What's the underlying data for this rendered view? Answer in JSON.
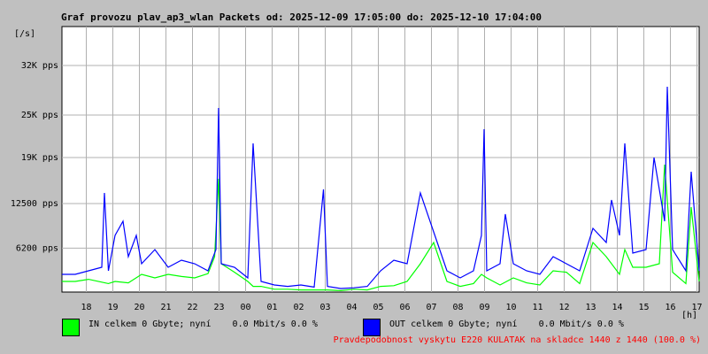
{
  "chart_data": {
    "type": "line",
    "title": "Graf provozu plav_ap3_wlan Packets od: 2025-12-09 17:05:00 do: 2025-12-10 17:04:00",
    "ylabel": "[/s]",
    "xlabel": "[h]",
    "ylim": [
      0,
      37500
    ],
    "yticks": [
      {
        "value": 6200,
        "label": "6200 pps"
      },
      {
        "value": 12500,
        "label": "12500 pps"
      },
      {
        "value": 19000,
        "label": "19K pps"
      },
      {
        "value": 25000,
        "label": "25K pps"
      },
      {
        "value": 32000,
        "label": "32K pps"
      }
    ],
    "xlim": [
      0,
      24
    ],
    "xticks": [
      {
        "value": 0.917,
        "label": "18"
      },
      {
        "value": 1.917,
        "label": "19"
      },
      {
        "value": 2.917,
        "label": "20"
      },
      {
        "value": 3.917,
        "label": "21"
      },
      {
        "value": 4.917,
        "label": "22"
      },
      {
        "value": 5.917,
        "label": "23"
      },
      {
        "value": 6.917,
        "label": "00"
      },
      {
        "value": 7.917,
        "label": "01"
      },
      {
        "value": 8.917,
        "label": "02"
      },
      {
        "value": 9.917,
        "label": "03"
      },
      {
        "value": 10.917,
        "label": "04"
      },
      {
        "value": 11.917,
        "label": "05"
      },
      {
        "value": 12.917,
        "label": "06"
      },
      {
        "value": 13.917,
        "label": "07"
      },
      {
        "value": 14.917,
        "label": "08"
      },
      {
        "value": 15.917,
        "label": "09"
      },
      {
        "value": 16.917,
        "label": "10"
      },
      {
        "value": 17.917,
        "label": "11"
      },
      {
        "value": 18.917,
        "label": "12"
      },
      {
        "value": 19.917,
        "label": "13"
      },
      {
        "value": 20.917,
        "label": "14"
      },
      {
        "value": 21.917,
        "label": "15"
      },
      {
        "value": 22.917,
        "label": "16"
      },
      {
        "value": 23.917,
        "label": "17"
      }
    ],
    "grid": true,
    "series": [
      {
        "name": "IN",
        "color": "#00ff00",
        "x": [
          0,
          0.5,
          1,
          1.5,
          1.75,
          2,
          2.5,
          3,
          3.5,
          4,
          4.5,
          5,
          5.5,
          5.75,
          5.9,
          6,
          6.5,
          7,
          7.2,
          7.5,
          8,
          8.5,
          9,
          9.5,
          10,
          10.5,
          11,
          11.5,
          12,
          12.5,
          13,
          13.5,
          14,
          14.5,
          15,
          15.5,
          15.8,
          16,
          16.5,
          17,
          17.5,
          18,
          18.5,
          19,
          19.5,
          20,
          20.5,
          21,
          21.2,
          21.5,
          22,
          22.5,
          22.7,
          23,
          23.5,
          23.7,
          24
        ],
        "values": [
          1500,
          1500,
          1800,
          1400,
          1200,
          1500,
          1300,
          2500,
          2000,
          2500,
          2200,
          2000,
          2600,
          5000,
          16000,
          4000,
          2800,
          1500,
          800,
          800,
          400,
          400,
          300,
          300,
          300,
          200,
          400,
          300,
          800,
          900,
          1500,
          4000,
          7000,
          1500,
          800,
          1200,
          2500,
          2000,
          1000,
          2000,
          1300,
          1000,
          3000,
          2800,
          1200,
          7000,
          5000,
          2500,
          6000,
          3500,
          3500,
          4000,
          18000,
          2800,
          1200,
          12000,
          1500
        ]
      },
      {
        "name": "OUT",
        "color": "#0000ff",
        "x": [
          0,
          0.5,
          1,
          1.5,
          1.6,
          1.75,
          2,
          2.3,
          2.5,
          2.8,
          3,
          3.5,
          4,
          4.5,
          5,
          5.5,
          5.8,
          5.9,
          6,
          6.5,
          7,
          7.2,
          7.5,
          8,
          8.5,
          9,
          9.5,
          9.85,
          10,
          10.5,
          11,
          11.5,
          12,
          12.5,
          13,
          13.5,
          14,
          14.5,
          15,
          15.5,
          15.8,
          15.9,
          16,
          16.5,
          16.7,
          17,
          17.5,
          18,
          18.5,
          19,
          19.5,
          20,
          20.5,
          20.7,
          21,
          21.2,
          21.5,
          22,
          22.3,
          22.7,
          22.8,
          23,
          23.5,
          23.7,
          24
        ],
        "values": [
          2500,
          2500,
          3000,
          3500,
          14000,
          3000,
          8000,
          10000,
          5000,
          8000,
          4000,
          6000,
          3500,
          4500,
          4000,
          3000,
          6000,
          26000,
          4000,
          3500,
          2000,
          21000,
          1500,
          1000,
          800,
          1000,
          700,
          14500,
          800,
          500,
          600,
          800,
          3000,
          4500,
          4000,
          14000,
          8500,
          3000,
          2000,
          3000,
          8000,
          23000,
          3000,
          4000,
          11000,
          4000,
          3000,
          2500,
          5000,
          4000,
          3000,
          9000,
          7000,
          13000,
          8000,
          21000,
          5500,
          6000,
          19000,
          10000,
          29000,
          6000,
          3000,
          17000,
          3000
        ]
      }
    ],
    "legend": [
      {
        "series": "IN",
        "label": "IN celkem 0 Gbyte; nyní    0.0 Mbit/s 0.0 %"
      },
      {
        "series": "OUT",
        "label": "OUT celkem 0 Gbyte; nyní    0.0 Mbit/s 0.0 %"
      }
    ],
    "legend_placement": "bottom"
  },
  "footer": {
    "text": "Pravdepodobnost vyskytu E220 KULATAK na skladce 1440 z 1440 (100.0 %)",
    "color": "#ff0000"
  }
}
